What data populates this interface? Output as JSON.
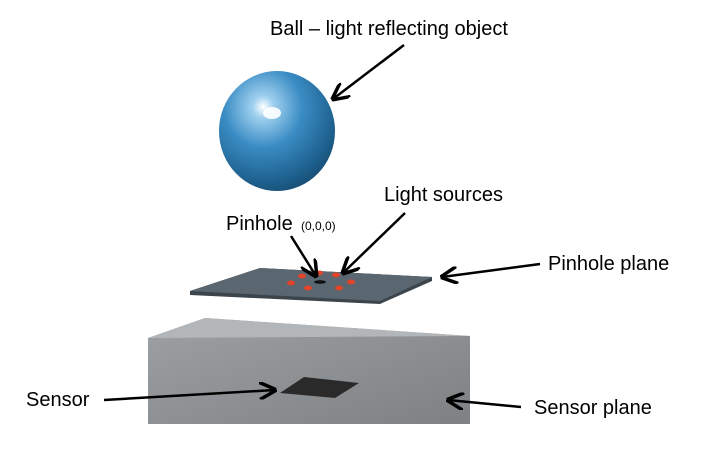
{
  "labels": {
    "ball": "Ball – light reflecting object",
    "light_sources": "Light sources",
    "pinhole": "Pinhole",
    "pinhole_coord": "(0,0,0)",
    "pinhole_plane": "Pinhole plane",
    "sensor": "Sensor",
    "sensor_plane": "Sensor plane"
  },
  "colors": {
    "ball": "#3a8cc4",
    "pinhole_plane": "#5a6670",
    "sensor_plane": "#8e9193",
    "sensor": "#2a2a2a",
    "light_source": "#e0452a"
  }
}
